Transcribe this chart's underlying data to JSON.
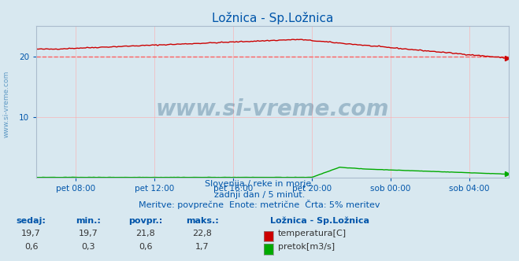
{
  "title": "Ložnica - Sp.Ložnica",
  "bg_color": "#d8e8f0",
  "plot_bg_color": "#d8e8f0",
  "grid_color": "#ffaaaa",
  "text_color": "#0055aa",
  "xlabel_ticks": [
    "pet 08:00",
    "pet 12:00",
    "pet 16:00",
    "pet 20:00",
    "sob 00:00",
    "sob 04:00"
  ],
  "ylabel_ticks": [
    10,
    20
  ],
  "ylim": [
    0,
    25
  ],
  "xlim": [
    0,
    288
  ],
  "temp_color": "#cc0000",
  "flow_color": "#00aa00",
  "dashed_line_y": 20,
  "dashed_line_color": "#ff5555",
  "watermark": "www.si-vreme.com",
  "subtitle1": "Slovenija / reke in morje.",
  "subtitle2": "zadnji dan / 5 minut.",
  "subtitle3": "Meritve: povprečne  Enote: metrične  Črta: 5% meritev",
  "legend_title": "Ložnica - Sp.Ložnica",
  "legend_items": [
    "temperatura[C]",
    "pretok[m3/s]"
  ],
  "legend_colors": [
    "#cc0000",
    "#00aa00"
  ],
  "stats_headers": [
    "sedaj:",
    "min.:",
    "povpr.:",
    "maks.:"
  ],
  "stats_temp": [
    "19,7",
    "19,7",
    "21,8",
    "22,8"
  ],
  "stats_flow": [
    "0,6",
    "0,3",
    "0,6",
    "1,7"
  ],
  "n_points": 288
}
